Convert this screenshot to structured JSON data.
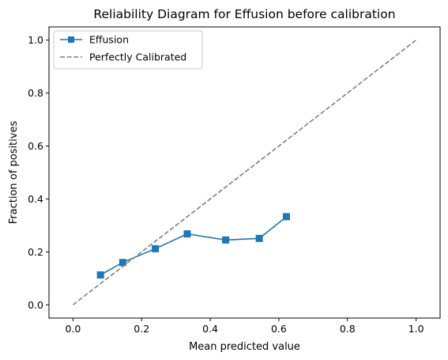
{
  "chart_data": {
    "type": "line",
    "title": "Reliability Diagram for Effusion before calibration",
    "xlabel": "Mean predicted value",
    "ylabel": "Fraction of positives",
    "xlim": [
      -0.07,
      1.07
    ],
    "ylim": [
      -0.05,
      1.05
    ],
    "x_ticks": [
      "0.0",
      "0.2",
      "0.4",
      "0.6",
      "0.8",
      "1.0"
    ],
    "y_ticks": [
      "0.0",
      "0.2",
      "0.4",
      "0.6",
      "0.8",
      "1.0"
    ],
    "grid": false,
    "legend_position": "top-left",
    "series": [
      {
        "name": "Effusion",
        "color": "#1f77b4",
        "marker": "square",
        "x": [
          0.08,
          0.145,
          0.24,
          0.333,
          0.445,
          0.543,
          0.622
        ],
        "y": [
          0.113,
          0.16,
          0.212,
          0.268,
          0.245,
          0.251,
          0.333
        ]
      },
      {
        "name": "Perfectly Calibrated",
        "color": "#808080",
        "line_style": "dashed",
        "x": [
          0,
          1
        ],
        "y": [
          0,
          1
        ]
      }
    ]
  }
}
